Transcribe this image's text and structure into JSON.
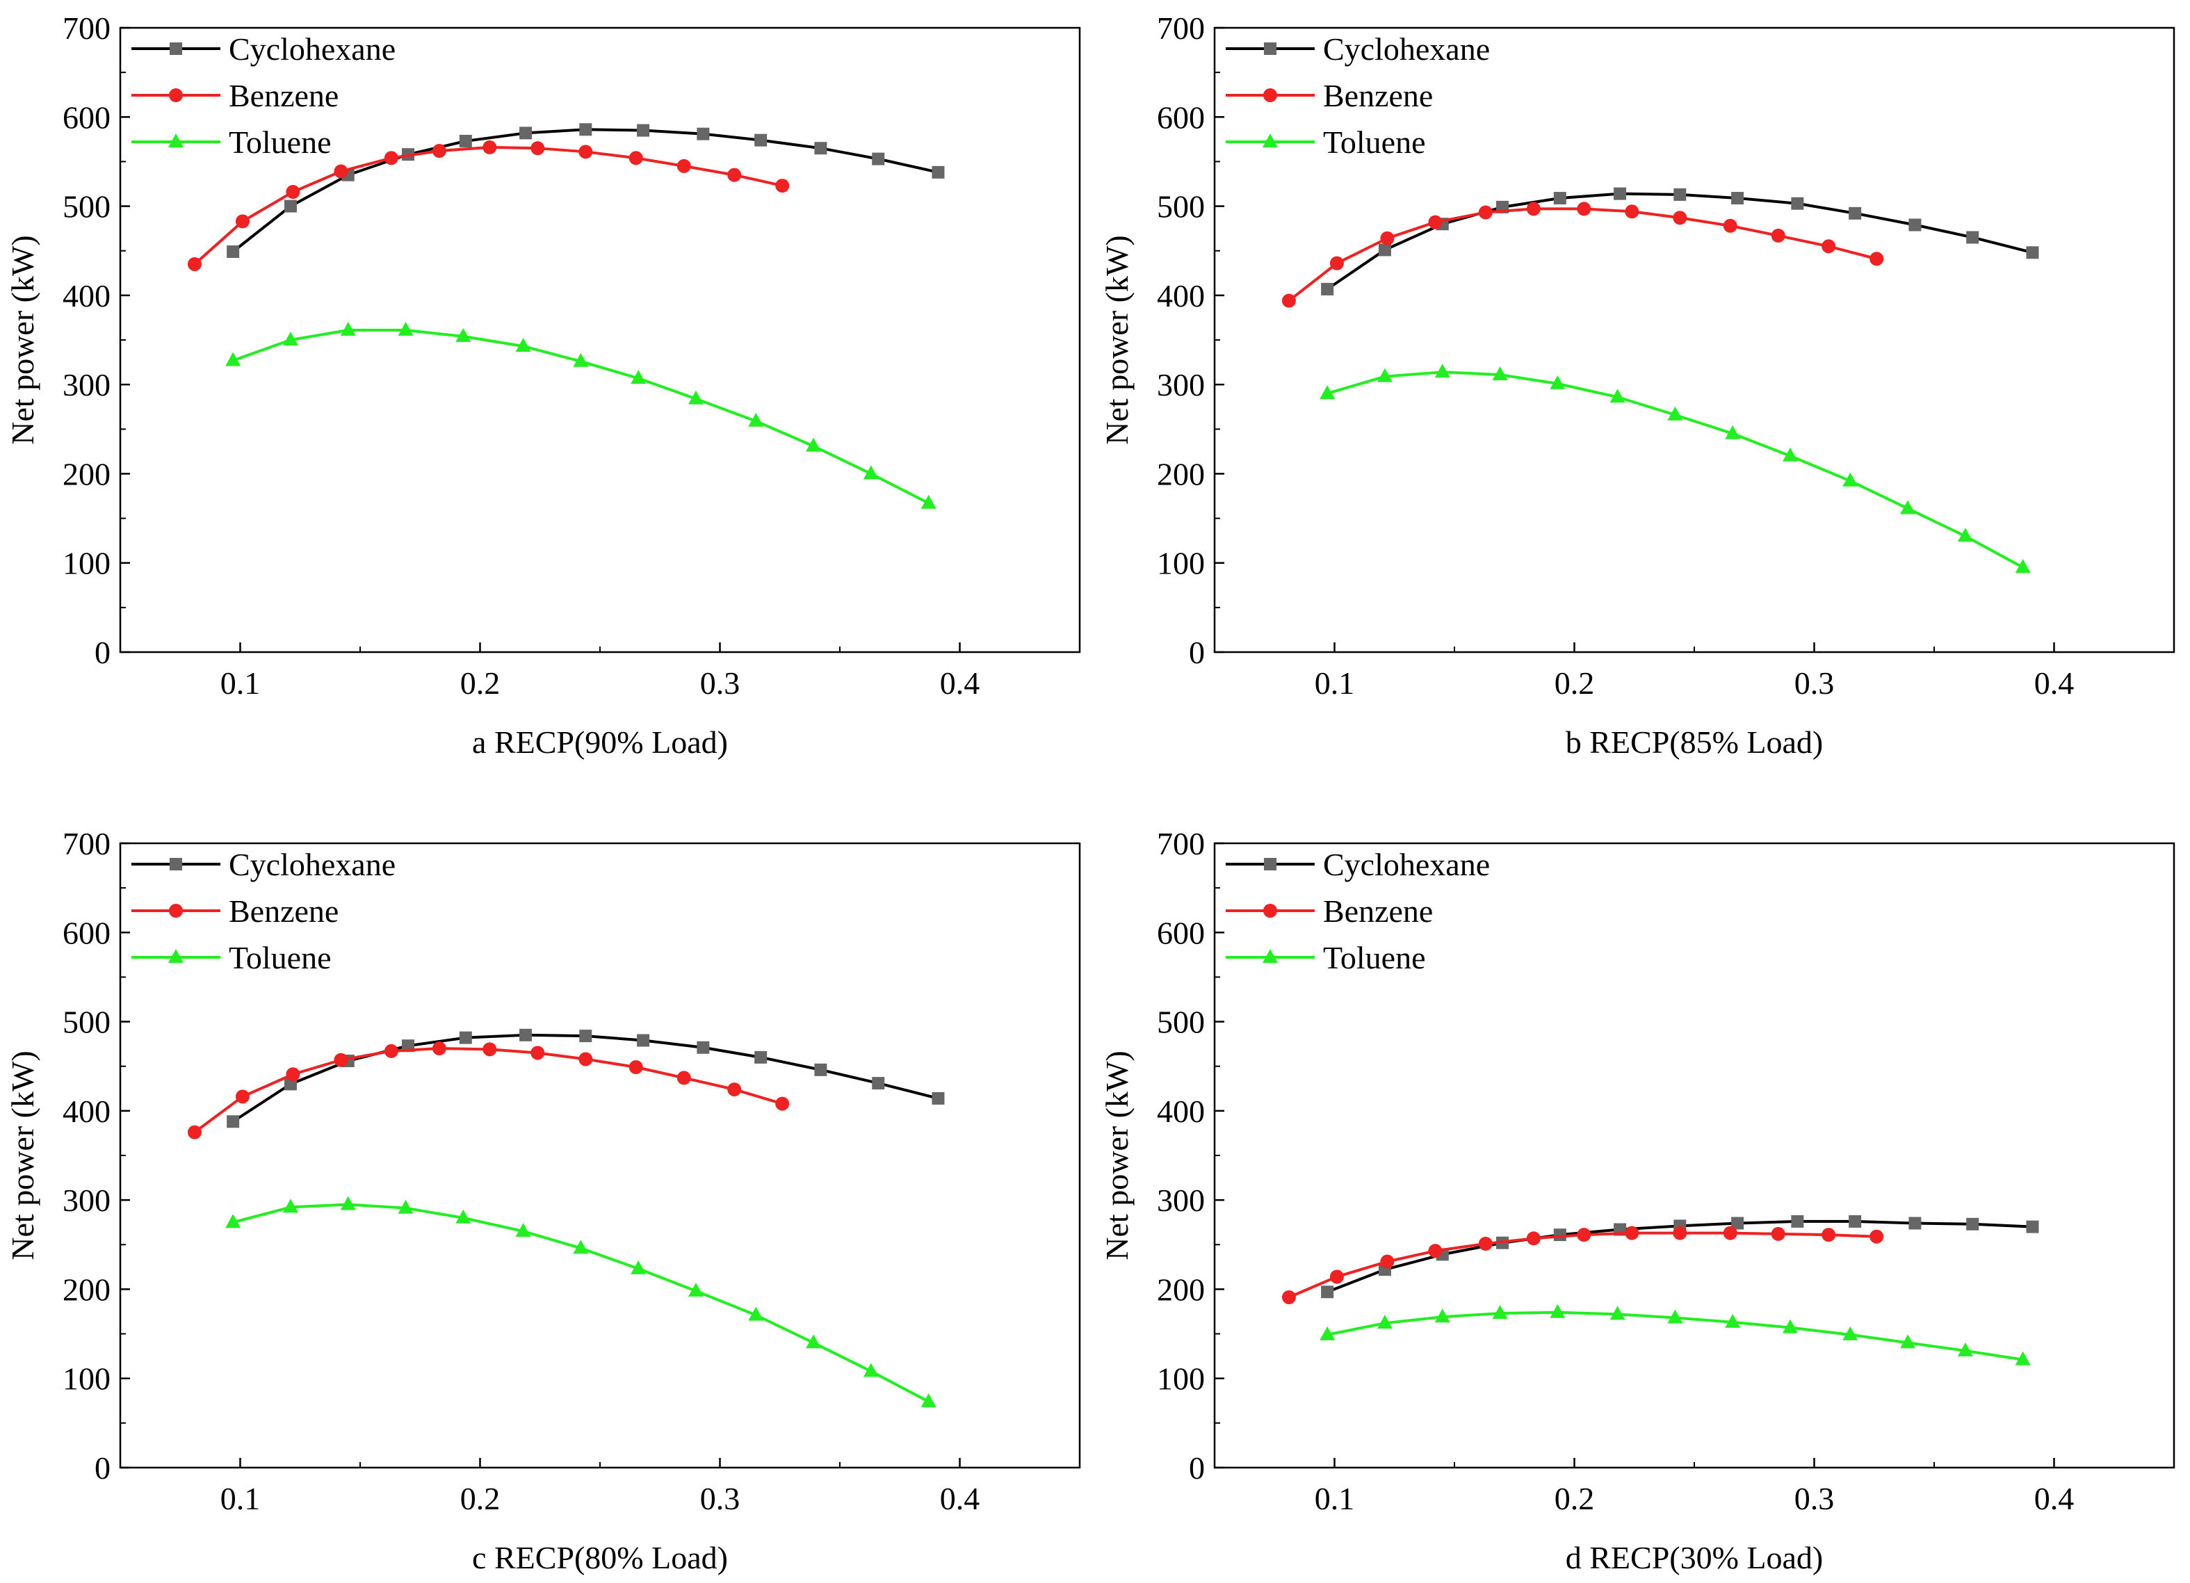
{
  "figure": {
    "panel_order": [
      "a",
      "b",
      "c",
      "d"
    ],
    "colors": {
      "Cyclohexane_line": "#000000",
      "Cyclohexane_marker": "#666666",
      "Benzene": "#ee2222",
      "Toluene": "#22ee22",
      "axes": "#000000"
    },
    "markers": {
      "Cyclohexane": "square",
      "Benzene": "circle",
      "Toluene": "triangle"
    }
  },
  "chart_data": [
    {
      "id": "a",
      "type": "line",
      "xlabel": "a RECP(90% Load)",
      "ylabel": "Net power (kW)",
      "xlim": [
        0.05,
        0.45
      ],
      "ylim": [
        0,
        700
      ],
      "xticks": [
        "0.1",
        "0.2",
        "0.3",
        "0.4"
      ],
      "yticks": [
        "0",
        "100",
        "200",
        "300",
        "400",
        "500",
        "600",
        "700"
      ],
      "legend_position": "top-left",
      "series": [
        {
          "name": "Cyclohexane",
          "x": [
            0.097,
            0.121,
            0.145,
            0.17,
            0.194,
            0.219,
            0.244,
            0.268,
            0.293,
            0.317,
            0.342,
            0.366,
            0.391
          ],
          "y": [
            449,
            500,
            535,
            558,
            573,
            582,
            586,
            585,
            581,
            574,
            565,
            553,
            538
          ]
        },
        {
          "name": "Benzene",
          "x": [
            0.081,
            0.101,
            0.122,
            0.142,
            0.163,
            0.183,
            0.204,
            0.224,
            0.244,
            0.265,
            0.285,
            0.306,
            0.326
          ],
          "y": [
            435,
            483,
            516,
            539,
            554,
            562,
            566,
            565,
            561,
            554,
            545,
            535,
            523
          ]
        },
        {
          "name": "Toluene",
          "x": [
            0.097,
            0.121,
            0.145,
            0.169,
            0.193,
            0.218,
            0.242,
            0.266,
            0.29,
            0.315,
            0.339,
            0.363,
            0.387
          ],
          "y": [
            327,
            350,
            361,
            361,
            354,
            343,
            326,
            307,
            284,
            259,
            231,
            200,
            167
          ]
        }
      ]
    },
    {
      "id": "b",
      "type": "line",
      "xlabel": "b RECP(85% Load)",
      "ylabel": "Net power (kW)",
      "xlim": [
        0.05,
        0.45
      ],
      "ylim": [
        0,
        700
      ],
      "xticks": [
        "0.1",
        "0.2",
        "0.3",
        "0.4"
      ],
      "yticks": [
        "0",
        "100",
        "200",
        "300",
        "400",
        "500",
        "600",
        "700"
      ],
      "legend_position": "top-left",
      "series": [
        {
          "name": "Cyclohexane",
          "x": [
            0.097,
            0.121,
            0.145,
            0.17,
            0.194,
            0.219,
            0.244,
            0.268,
            0.293,
            0.317,
            0.342,
            0.366,
            0.391
          ],
          "y": [
            407,
            451,
            480,
            499,
            509,
            514,
            513,
            509,
            503,
            492,
            479,
            465,
            448
          ]
        },
        {
          "name": "Benzene",
          "x": [
            0.081,
            0.101,
            0.122,
            0.142,
            0.163,
            0.183,
            0.204,
            0.224,
            0.244,
            0.265,
            0.285,
            0.306,
            0.326
          ],
          "y": [
            394,
            436,
            464,
            482,
            493,
            497,
            497,
            494,
            487,
            478,
            467,
            455,
            441
          ]
        },
        {
          "name": "Toluene",
          "x": [
            0.097,
            0.121,
            0.145,
            0.169,
            0.193,
            0.218,
            0.242,
            0.266,
            0.29,
            0.315,
            0.339,
            0.363,
            0.387
          ],
          "y": [
            290,
            309,
            314,
            311,
            301,
            286,
            266,
            245,
            220,
            192,
            161,
            130,
            95
          ]
        }
      ]
    },
    {
      "id": "c",
      "type": "line",
      "xlabel": "c RECP(80% Load)",
      "ylabel": "Net power (kW)",
      "xlim": [
        0.05,
        0.45
      ],
      "ylim": [
        0,
        700
      ],
      "xticks": [
        "0.1",
        "0.2",
        "0.3",
        "0.4"
      ],
      "yticks": [
        "0",
        "100",
        "200",
        "300",
        "400",
        "500",
        "600",
        "700"
      ],
      "legend_position": "top-left",
      "series": [
        {
          "name": "Cyclohexane",
          "x": [
            0.097,
            0.121,
            0.145,
            0.17,
            0.194,
            0.219,
            0.244,
            0.268,
            0.293,
            0.317,
            0.342,
            0.366,
            0.391
          ],
          "y": [
            388,
            430,
            456,
            473,
            482,
            485,
            484,
            479,
            471,
            460,
            446,
            431,
            414
          ]
        },
        {
          "name": "Benzene",
          "x": [
            0.081,
            0.101,
            0.122,
            0.142,
            0.163,
            0.183,
            0.204,
            0.224,
            0.244,
            0.265,
            0.285,
            0.306,
            0.326
          ],
          "y": [
            376,
            416,
            441,
            457,
            467,
            470,
            469,
            465,
            458,
            449,
            437,
            424,
            408
          ]
        },
        {
          "name": "Toluene",
          "x": [
            0.097,
            0.121,
            0.145,
            0.169,
            0.193,
            0.218,
            0.242,
            0.266,
            0.29,
            0.315,
            0.339,
            0.363,
            0.387
          ],
          "y": [
            275,
            292,
            295,
            291,
            280,
            265,
            246,
            223,
            198,
            171,
            140,
            108,
            74
          ]
        }
      ]
    },
    {
      "id": "d",
      "type": "line",
      "xlabel": "d RECP(30% Load)",
      "ylabel": "Net power (kW)",
      "xlim": [
        0.05,
        0.45
      ],
      "ylim": [
        0,
        700
      ],
      "xticks": [
        "0.1",
        "0.2",
        "0.3",
        "0.4"
      ],
      "yticks": [
        "0",
        "100",
        "200",
        "300",
        "400",
        "500",
        "600",
        "700"
      ],
      "legend_position": "top-left",
      "series": [
        {
          "name": "Cyclohexane",
          "x": [
            0.097,
            0.121,
            0.145,
            0.17,
            0.194,
            0.219,
            0.244,
            0.268,
            0.293,
            0.317,
            0.342,
            0.366,
            0.391
          ],
          "y": [
            197,
            222,
            239,
            252,
            261,
            267,
            271,
            274,
            276,
            276,
            274,
            273,
            270
          ]
        },
        {
          "name": "Benzene",
          "x": [
            0.081,
            0.101,
            0.122,
            0.142,
            0.163,
            0.183,
            0.204,
            0.224,
            0.244,
            0.265,
            0.285,
            0.306,
            0.326
          ],
          "y": [
            191,
            214,
            231,
            243,
            251,
            257,
            261,
            263,
            263,
            263,
            262,
            261,
            259
          ]
        },
        {
          "name": "Toluene",
          "x": [
            0.097,
            0.121,
            0.145,
            0.169,
            0.193,
            0.218,
            0.242,
            0.266,
            0.29,
            0.315,
            0.339,
            0.363,
            0.387
          ],
          "y": [
            149,
            162,
            169,
            173,
            174,
            172,
            168,
            163,
            157,
            149,
            140,
            131,
            121
          ]
        }
      ]
    }
  ]
}
